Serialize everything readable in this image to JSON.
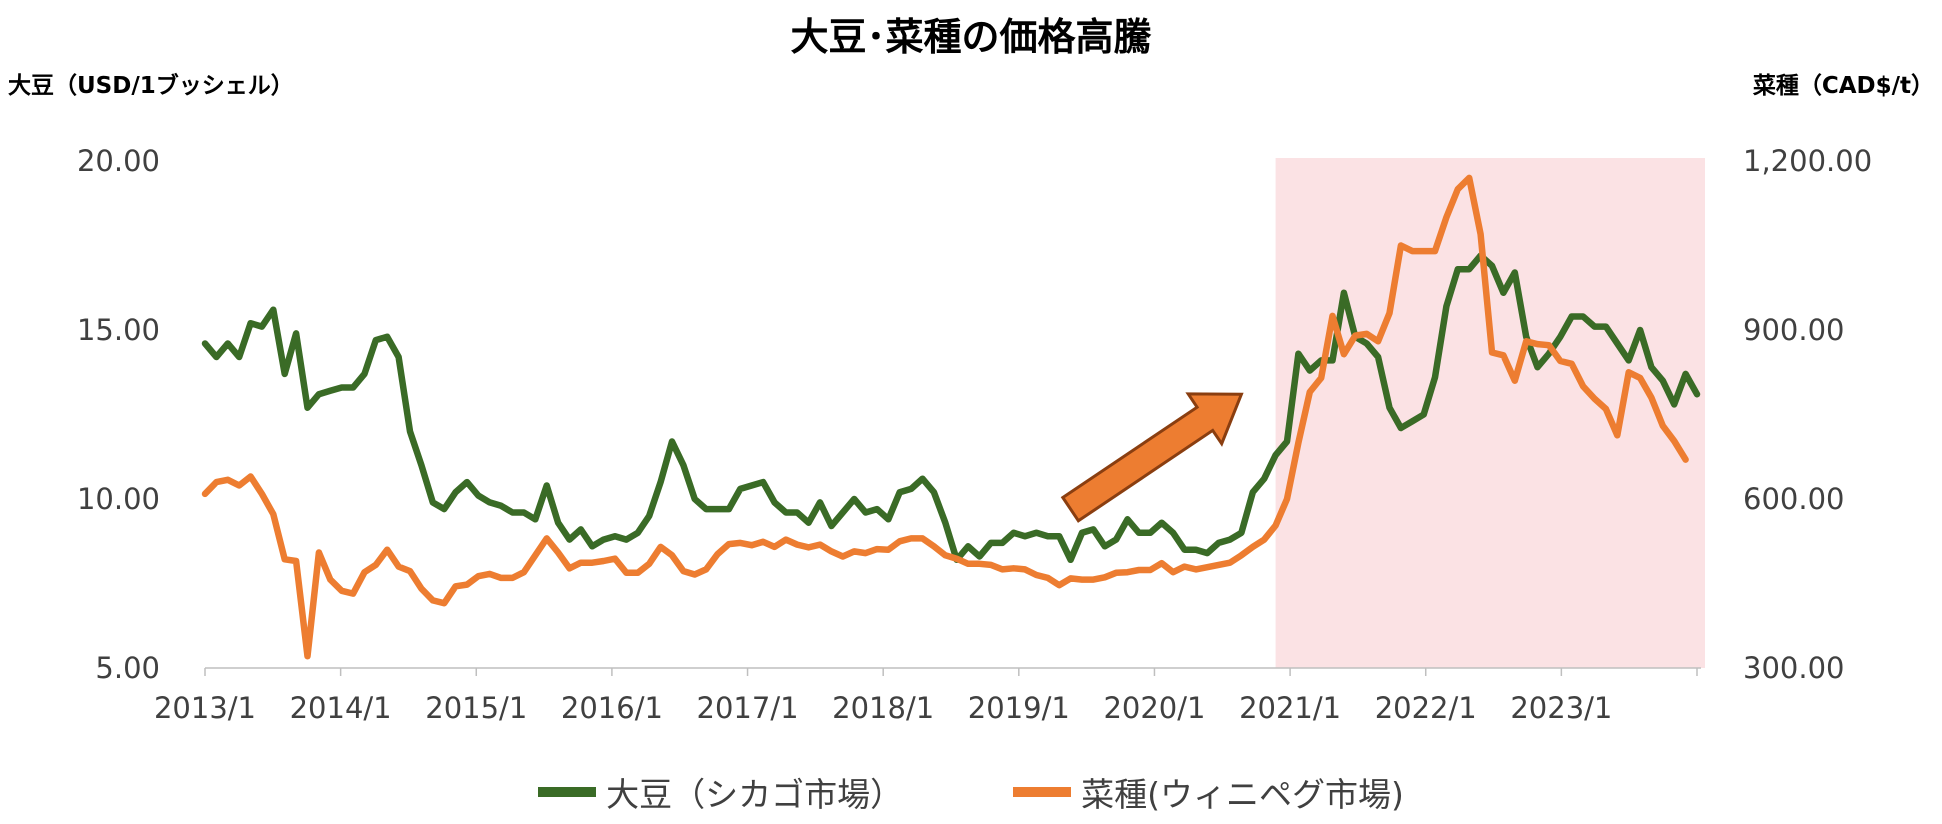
{
  "page": {
    "title": "大豆･菜種の価格高騰",
    "left_axis_title": "大豆（USD/1ブッシェル）",
    "right_axis_title": "菜種（CAD$/t）"
  },
  "colors": {
    "soy": "#3a6b26",
    "rapeseed": "#ed7d31",
    "highlight": "#fbe2e4",
    "arrow_fill": "#ed7d31",
    "arrow_stroke": "#8a3e10",
    "axis": "#bfbfbf"
  },
  "chart_data": {
    "type": "line",
    "title": "大豆･菜種の価格高騰",
    "x_labels": [
      "2013/1",
      "2014/1",
      "2015/1",
      "2016/1",
      "2017/1",
      "2018/1",
      "2019/1",
      "2020/1",
      "2021/1",
      "2022/1",
      "2023/1"
    ],
    "x_range": [
      "2013/1",
      "2023/12"
    ],
    "y_left": {
      "label": "大豆（USD/1ブッシェル）",
      "range": [
        5,
        20
      ],
      "ticks": [
        "20.00",
        "15.00",
        "10.00",
        "5.00"
      ]
    },
    "y_right": {
      "label": "菜種（CAD$/t）",
      "range": [
        300,
        1200
      ],
      "ticks": [
        "1,200.00",
        "900.00",
        "600.00",
        "300.00"
      ]
    },
    "highlight_range": [
      "2020/11",
      "2023/12"
    ],
    "annotation": {
      "type": "arrow",
      "from": [
        "2019/5",
        9.7
      ],
      "to": [
        "2020/8",
        13.1
      ]
    },
    "legend_position": "bottom",
    "grid": false,
    "series": [
      {
        "name": "大豆（シカゴ市場）",
        "axis": "left",
        "color": "#3a6b26",
        "values": [
          14.6,
          14.2,
          14.6,
          14.2,
          15.2,
          15.1,
          15.6,
          13.7,
          14.9,
          12.7,
          13.1,
          13.2,
          13.3,
          13.3,
          13.7,
          14.7,
          14.8,
          14.2,
          12.0,
          11.0,
          9.9,
          9.7,
          10.2,
          10.5,
          10.1,
          9.9,
          9.8,
          9.6,
          9.6,
          9.4,
          10.4,
          9.3,
          8.8,
          9.1,
          8.6,
          8.8,
          8.9,
          8.8,
          9.0,
          9.5,
          10.5,
          11.7,
          11.0,
          10.0,
          9.7,
          9.7,
          9.7,
          10.3,
          10.4,
          10.5,
          9.9,
          9.6,
          9.6,
          9.3,
          9.9,
          9.2,
          9.6,
          10.0,
          9.6,
          9.7,
          9.4,
          10.2,
          10.3,
          10.6,
          10.2,
          9.3,
          8.2,
          8.6,
          8.3,
          8.7,
          8.7,
          9.0,
          8.9,
          9.0,
          8.9,
          8.9,
          8.2,
          9.0,
          9.1,
          8.6,
          8.8,
          9.4,
          9.0,
          9.0,
          9.3,
          9.0,
          8.5,
          8.5,
          8.4,
          8.7,
          8.8,
          9.0,
          10.2,
          10.6,
          11.3,
          11.7,
          14.3,
          13.8,
          14.1,
          14.1,
          16.1,
          14.8,
          14.6,
          14.2,
          12.7,
          12.1,
          12.3,
          12.5,
          13.6,
          15.7,
          16.8,
          16.8,
          17.2,
          16.9,
          16.1,
          16.7,
          14.8,
          13.9,
          14.3,
          14.8,
          15.4,
          15.4,
          15.1,
          15.1,
          14.6,
          14.1,
          15.0,
          13.9,
          13.5,
          12.8,
          13.7,
          13.1
        ]
      },
      {
        "name": "菜種(ウィニペグ市場)",
        "axis": "right",
        "color": "#ed7d31",
        "values": [
          609,
          630,
          634,
          624,
          640,
          609,
          573,
          493,
          490,
          321,
          505,
          457,
          437,
          432,
          470,
          483,
          510,
          480,
          472,
          441,
          420,
          415,
          445,
          448,
          463,
          467,
          460,
          460,
          470,
          500,
          530,
          505,
          477,
          487,
          487,
          490,
          494,
          469,
          469,
          485,
          515,
          500,
          472,
          466,
          475,
          502,
          520,
          522,
          518,
          524,
          515,
          528,
          519,
          514,
          519,
          507,
          498,
          507,
          504,
          511,
          510,
          525,
          530,
          530,
          516,
          500,
          494,
          485,
          485,
          483,
          475,
          477,
          475,
          465,
          460,
          447,
          459,
          457,
          457,
          461,
          469,
          470,
          474,
          474,
          486,
          470,
          480,
          475,
          479,
          483,
          487,
          500,
          515,
          528,
          553,
          600,
          700,
          790,
          815,
          925,
          857,
          890,
          893,
          880,
          930,
          1050,
          1040,
          1040,
          1040,
          1100,
          1150,
          1170,
          1070,
          860,
          855,
          810,
          880,
          875,
          873,
          845,
          840,
          800,
          778,
          760,
          713,
          825,
          815,
          780,
          730,
          703,
          670
        ]
      }
    ]
  }
}
